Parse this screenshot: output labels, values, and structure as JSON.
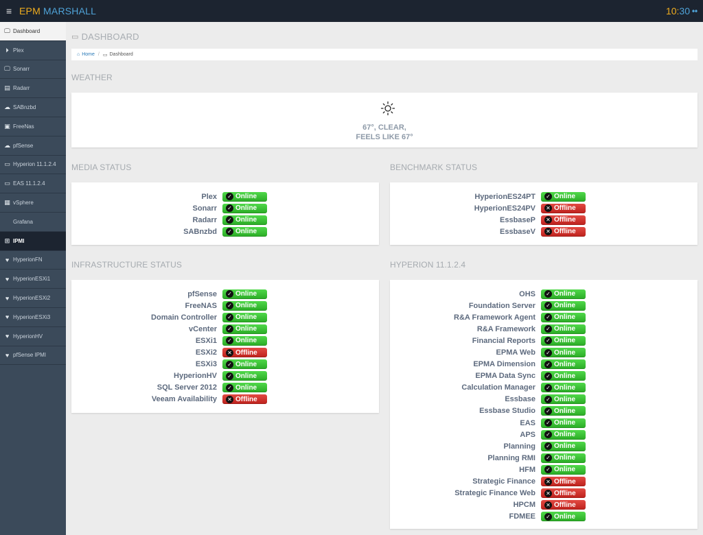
{
  "topbar": {
    "menu_icon": "hamburger-icon",
    "brand_part1": "EPM",
    "brand_part2": " MARSHALL",
    "clock_hours": "10:",
    "clock_minutes": "30",
    "clock_icon": "sync-icon",
    "clock_icon_glyph": "⦁⦁"
  },
  "colors": {
    "topbar_bg": "#1c2430",
    "sidebar_bg": "#3b4a5a",
    "brand_orange": "#f0ad1e",
    "brand_blue": "#4fa3d8",
    "online_green": "#2aab25",
    "offline_red": "#bd211c"
  },
  "sidebar": {
    "items": [
      {
        "label": "Dashboard",
        "icon": "monitor-icon",
        "glyph": "🖵"
      },
      {
        "label": "Plex",
        "icon": "play-circle-icon",
        "glyph": "⏵"
      },
      {
        "label": "Sonarr",
        "icon": "monitor-icon",
        "glyph": "🖵"
      },
      {
        "label": "Radarr",
        "icon": "film-icon",
        "glyph": "▤"
      },
      {
        "label": "SABnzbd",
        "icon": "cloud-download-icon",
        "glyph": "☁"
      },
      {
        "label": "FreeNas",
        "icon": "floppy-icon",
        "glyph": "▣"
      },
      {
        "label": "pfSense",
        "icon": "cloud-icon",
        "glyph": "☁"
      },
      {
        "label": "Hyperion 11.1.2.4",
        "icon": "laptop-icon",
        "glyph": "▭"
      },
      {
        "label": "EAS 11.1.2.4",
        "icon": "laptop-icon",
        "glyph": "▭"
      },
      {
        "label": "vSphere",
        "icon": "grid-icon",
        "glyph": "▦"
      },
      {
        "label": "Grafana",
        "icon": "",
        "glyph": ""
      },
      {
        "label": "IPMI",
        "icon": "plus-square-icon",
        "glyph": "⊞"
      },
      {
        "label": "HyperionFN",
        "icon": "heart-icon",
        "glyph": "♥"
      },
      {
        "label": "HyperionESXi1",
        "icon": "heart-icon",
        "glyph": "♥"
      },
      {
        "label": "HyperionESXi2",
        "icon": "heart-icon",
        "glyph": "♥"
      },
      {
        "label": "HyperionESXi3",
        "icon": "heart-icon",
        "glyph": "♥"
      },
      {
        "label": "HyperionHV",
        "icon": "heart-icon",
        "glyph": "♥"
      },
      {
        "label": "pfSense IPMI",
        "icon": "heart-icon",
        "glyph": "♥"
      }
    ]
  },
  "page": {
    "title": "DASHBOARD",
    "breadcrumb_home": "Home",
    "breadcrumb_sep": "/",
    "breadcrumb_current": "Dashboard"
  },
  "weather": {
    "section_title": "WEATHER",
    "icon": "sun-icon",
    "line1": "67°, CLEAR,",
    "line2": "FEELS LIKE 67°"
  },
  "status_labels": {
    "online": "Online",
    "offline": "Offline"
  },
  "media": {
    "title": "MEDIA STATUS",
    "rows": [
      {
        "name": "Plex",
        "status": "online"
      },
      {
        "name": "Sonarr",
        "status": "online"
      },
      {
        "name": "Radarr",
        "status": "online"
      },
      {
        "name": "SABnzbd",
        "status": "online"
      }
    ]
  },
  "benchmark": {
    "title": "BENCHMARK STATUS",
    "rows": [
      {
        "name": "HyperionES24PT",
        "status": "online"
      },
      {
        "name": "HyperionES24PV",
        "status": "offline"
      },
      {
        "name": "EssbaseP",
        "status": "offline"
      },
      {
        "name": "EssbaseV",
        "status": "offline"
      }
    ]
  },
  "infrastructure": {
    "title": "INFRASTRUCTURE STATUS",
    "rows": [
      {
        "name": "pfSense",
        "status": "online"
      },
      {
        "name": "FreeNAS",
        "status": "online"
      },
      {
        "name": "Domain Controller",
        "status": "online"
      },
      {
        "name": "vCenter",
        "status": "online"
      },
      {
        "name": "ESXi1",
        "status": "online"
      },
      {
        "name": "ESXi2",
        "status": "offline"
      },
      {
        "name": "ESXi3",
        "status": "online"
      },
      {
        "name": "HyperionHV",
        "status": "online"
      },
      {
        "name": "SQL Server 2012",
        "status": "online"
      },
      {
        "name": "Veeam Availability",
        "status": "offline"
      }
    ]
  },
  "hyperion": {
    "title": "HYPERION 11.1.2.4",
    "rows": [
      {
        "name": "OHS",
        "status": "online"
      },
      {
        "name": "Foundation Server",
        "status": "online"
      },
      {
        "name": "R&A Framework Agent",
        "status": "online"
      },
      {
        "name": "R&A Framework",
        "status": "online"
      },
      {
        "name": "Financial Reports",
        "status": "online"
      },
      {
        "name": "EPMA Web",
        "status": "online"
      },
      {
        "name": "EPMA Dimension",
        "status": "online"
      },
      {
        "name": "EPMA Data Sync",
        "status": "online"
      },
      {
        "name": "Calculation Manager",
        "status": "online"
      },
      {
        "name": "Essbase",
        "status": "online"
      },
      {
        "name": "Essbase Studio",
        "status": "online"
      },
      {
        "name": "EAS",
        "status": "online"
      },
      {
        "name": "APS",
        "status": "online"
      },
      {
        "name": "Planning",
        "status": "online"
      },
      {
        "name": "Planning RMI",
        "status": "online"
      },
      {
        "name": "HFM",
        "status": "online"
      },
      {
        "name": "Strategic Finance",
        "status": "offline"
      },
      {
        "name": "Strategic Finance Web",
        "status": "offline"
      },
      {
        "name": "HPCM",
        "status": "offline"
      },
      {
        "name": "FDMEE",
        "status": "online"
      }
    ]
  }
}
